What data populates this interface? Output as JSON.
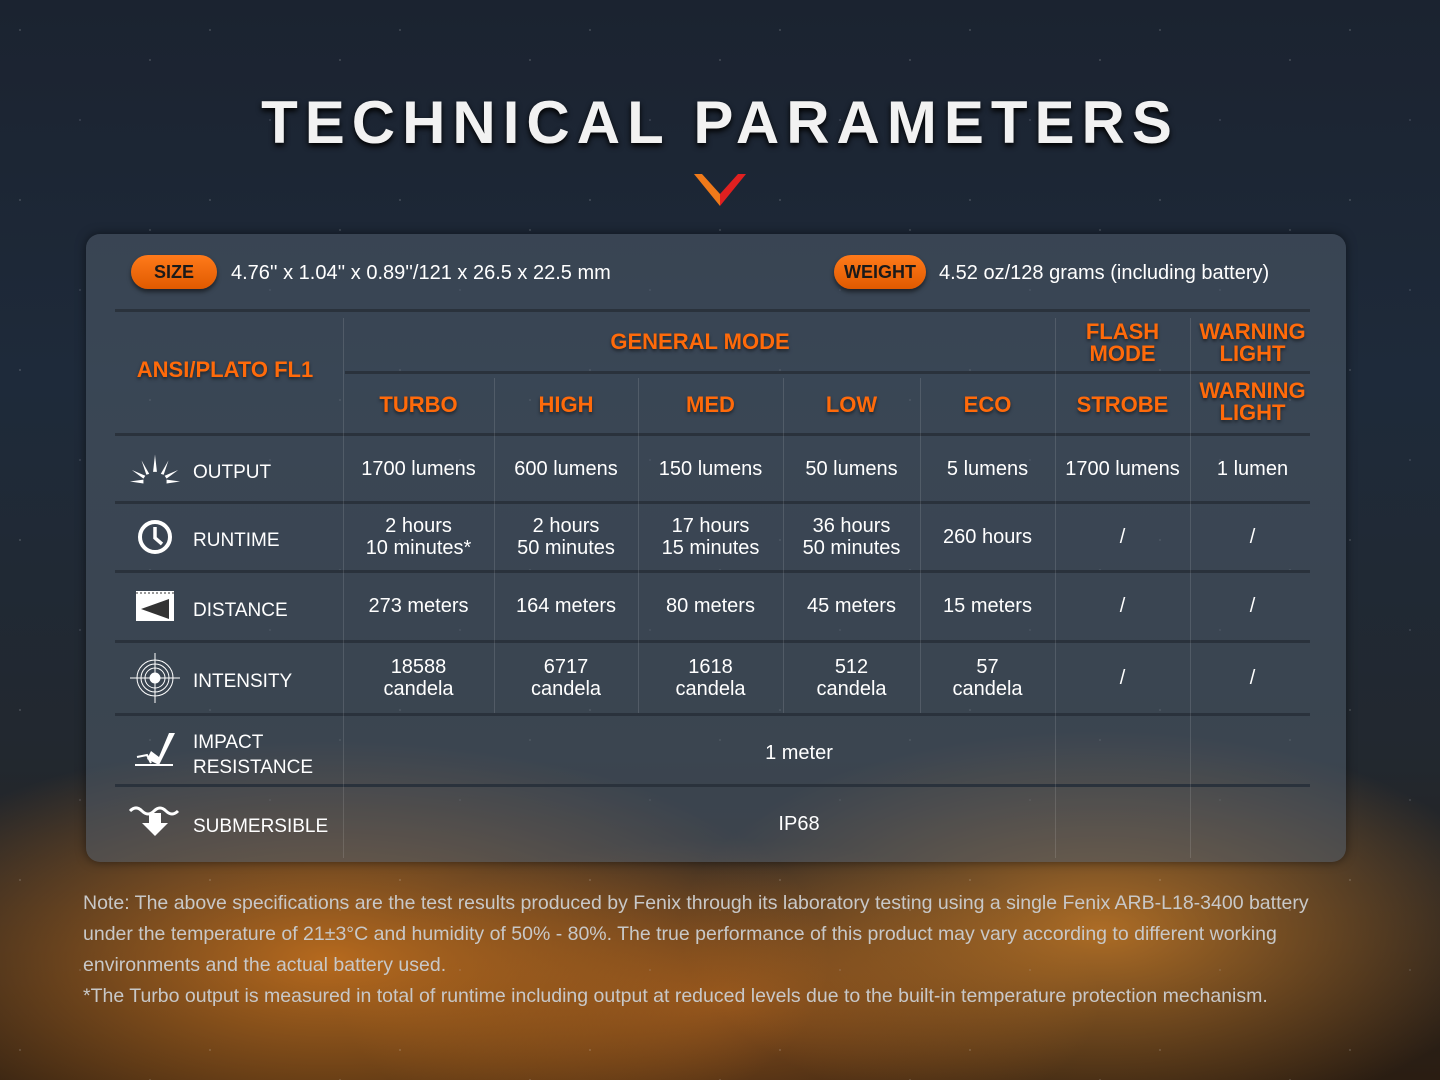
{
  "title": "TECHNICAL PARAMETERS",
  "colors": {
    "accent": "#ff6a0a",
    "pill": "#f06a0a"
  },
  "size": {
    "label": "SIZE",
    "value": "4.76'' x 1.04'' x 0.89''/121 x 26.5 x 22.5 mm"
  },
  "weight": {
    "label": "WEIGHT",
    "value": "4.52 oz/128 grams (including battery)"
  },
  "header": {
    "standard": "ANSI/PLATO FL1",
    "general_mode": "GENERAL MODE",
    "flash_mode": "FLASH MODE",
    "warning_light": "WARNING LIGHT",
    "columns": [
      "TURBO",
      "HIGH",
      "MED",
      "LOW",
      "ECO",
      "STROBE",
      "WARNING LIGHT"
    ]
  },
  "rows": [
    {
      "label": "OUTPUT",
      "icon": "output-icon",
      "values": [
        "1700 lumens",
        "600 lumens",
        "150 lumens",
        "50 lumens",
        "5 lumens",
        "1700 lumens",
        "1 lumen"
      ]
    },
    {
      "label": "RUNTIME",
      "icon": "clock-icon",
      "values": [
        "2 hours\n10 minutes*",
        "2 hours\n50 minutes",
        "17 hours\n15 minutes",
        "36 hours\n50 minutes",
        "260 hours",
        "/",
        "/"
      ]
    },
    {
      "label": "DISTANCE",
      "icon": "distance-icon",
      "values": [
        "273 meters",
        "164 meters",
        "80 meters",
        "45 meters",
        "15 meters",
        "/",
        "/"
      ]
    },
    {
      "label": "INTENSITY",
      "icon": "target-icon",
      "values": [
        "18588\ncandela",
        "6717\ncandela",
        "1618\ncandela",
        "512\ncandela",
        "57\ncandela",
        "/",
        "/"
      ]
    }
  ],
  "impact": {
    "label": "IMPACT\nRESISTANCE",
    "value": "1 meter"
  },
  "submersible": {
    "label": "SUBMERSIBLE",
    "value": "IP68"
  },
  "note": [
    "Note: The above specifications are the test results produced by Fenix through its laboratory testing using a single Fenix ARB-L18-3400 battery under the temperature of 21±3°C and humidity of 50% - 80%. The true performance of this product may vary according to different working environments and the actual battery used.",
    "*The Turbo output is measured in total of runtime including output at reduced levels due to the built-in temperature protection mechanism."
  ]
}
